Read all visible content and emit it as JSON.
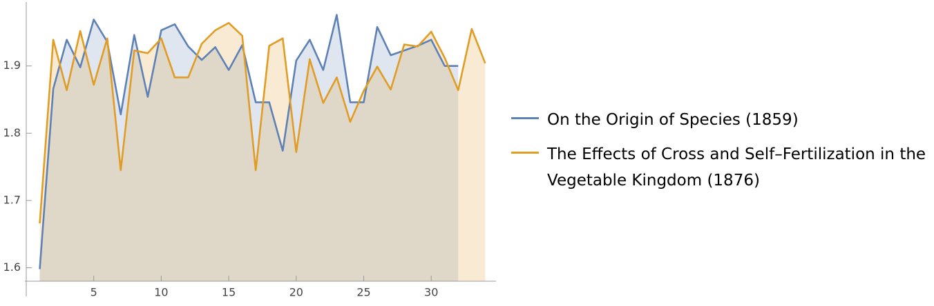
{
  "chart_data": {
    "type": "line",
    "filling": "axis",
    "series": [
      {
        "name": "On the Origin of Species (1859)",
        "color": "#5e81b5",
        "x": [
          1,
          2,
          3,
          4,
          5,
          6,
          7,
          8,
          9,
          10,
          11,
          12,
          13,
          14,
          15,
          16,
          17,
          18,
          19,
          20,
          21,
          22,
          23,
          24,
          25,
          26,
          27,
          28,
          29,
          30,
          31,
          32
        ],
        "values": [
          1.598,
          1.866,
          1.939,
          1.898,
          1.969,
          1.936,
          1.828,
          1.946,
          1.854,
          1.953,
          1.962,
          1.929,
          1.909,
          1.928,
          1.894,
          1.931,
          1.846,
          1.846,
          1.774,
          1.908,
          1.939,
          1.894,
          1.976,
          1.846,
          1.846,
          1.958,
          1.916,
          1.923,
          1.93,
          1.939,
          1.9,
          1.9
        ]
      },
      {
        "name": "The Effects of Cross and Self–Fertilization in the Vegetable Kingdom (1876)",
        "color": "#e19c24",
        "x": [
          1,
          2,
          3,
          4,
          5,
          6,
          7,
          8,
          9,
          10,
          11,
          12,
          13,
          14,
          15,
          16,
          17,
          18,
          19,
          20,
          21,
          22,
          23,
          24,
          25,
          26,
          27,
          28,
          29,
          30,
          31,
          32,
          33,
          34
        ],
        "values": [
          1.666,
          1.939,
          1.864,
          1.952,
          1.872,
          1.941,
          1.745,
          1.923,
          1.919,
          1.941,
          1.883,
          1.883,
          1.933,
          1.953,
          1.964,
          1.945,
          1.745,
          1.93,
          1.941,
          1.772,
          1.91,
          1.845,
          1.883,
          1.817,
          1.863,
          1.899,
          1.865,
          1.932,
          1.929,
          1.951,
          1.912,
          1.864,
          1.955,
          1.904
        ]
      }
    ],
    "xlim": [
      0,
      34.8
    ],
    "xticks": [
      5,
      10,
      15,
      20,
      25,
      30
    ],
    "ylim": [
      1.58,
      1.995
    ],
    "yticks": [
      1.6,
      1.7,
      1.8,
      1.9
    ],
    "legend": "right"
  }
}
